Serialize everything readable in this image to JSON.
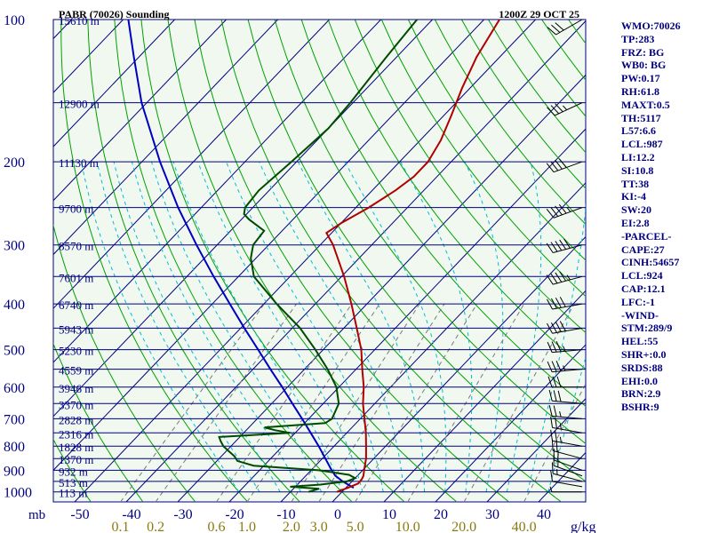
{
  "header": {
    "station_title": "PABR (70026) Sounding",
    "time_title": "1200Z 29 OCT 25"
  },
  "stats": [
    "WMO:70026",
    "TP:283",
    "FRZ: BG",
    "WB0: BG",
    "PW:0.17",
    "RH:61.8",
    "MAXT:0.5",
    "TH:5117",
    "L57:6.6",
    "LCL:987",
    "LI:12.2",
    "SI:10.8",
    "TT:38",
    "KI:-4",
    "SW:20",
    "EI:2.8",
    "-PARCEL-",
    "CAPE:27",
    "CINH:54657",
    "LCL:924",
    "CAP:12.1",
    "LFC:-1",
    "-WIND-",
    "STM:289/9",
    "HEL:55",
    "SHR+:0.0",
    "SRDS:88",
    "EHI:0.0",
    "BRN:2.9",
    "BSHR:9"
  ],
  "colors": {
    "background": "#f0f8f0",
    "isobar": "#000080",
    "isotherm": "#000080",
    "dry_adiabat": "#00a000",
    "moist_adiabat": "#00bcd4",
    "mixing_ratio": "#7a7a7a",
    "temperature": "#b00000",
    "dewpoint": "#004a00",
    "parcel": "#0000c0",
    "wind": "#000000",
    "pressure_label": "#000080",
    "height_label": "#000080",
    "temp_label": "#000080",
    "mixing_label": "#8a7a10"
  },
  "chart_data": {
    "type": "skew-t",
    "pressure_axis_unit": "mb",
    "mixing_ratio_unit": "g/kg",
    "pressure_levels": [
      100,
      200,
      300,
      400,
      500,
      600,
      700,
      800,
      900,
      1000
    ],
    "temperature_ticks": [
      -50,
      -40,
      -30,
      -20,
      -10,
      0,
      10,
      20,
      30,
      40
    ],
    "mixing_ratio_ticks": [
      "0.1",
      "0.2",
      "0.6",
      "1.0",
      "2.0",
      "3.0",
      "5.0",
      "10.0",
      "20.0",
      "40.0"
    ],
    "mixing_ratio_values": [
      0.1,
      0.2,
      0.6,
      1.0,
      2.0,
      3.0,
      5.0,
      10.0,
      20.0,
      40.0
    ],
    "height_labels": [
      {
        "p": 100,
        "label": "15610 m"
      },
      {
        "p": 150,
        "label": "12900 m"
      },
      {
        "p": 200,
        "label": "11130 m"
      },
      {
        "p": 250,
        "label": "9700 m"
      },
      {
        "p": 300,
        "label": "8570 m"
      },
      {
        "p": 350,
        "label": "7601 m"
      },
      {
        "p": 400,
        "label": "6740 m"
      },
      {
        "p": 450,
        "label": "5943 m"
      },
      {
        "p": 500,
        "label": "5230 m"
      },
      {
        "p": 550,
        "label": "4559 m"
      },
      {
        "p": 600,
        "label": "3946 m"
      },
      {
        "p": 650,
        "label": "3370 m"
      },
      {
        "p": 700,
        "label": "2828 m"
      },
      {
        "p": 750,
        "label": "2316 m"
      },
      {
        "p": 800,
        "label": "1828 m"
      },
      {
        "p": 850,
        "label": "1370 m"
      },
      {
        "p": 900,
        "label": "932 m"
      },
      {
        "p": 950,
        "label": "513 m"
      },
      {
        "p": 1000,
        "label": "113 m"
      }
    ],
    "temperature_profile": [
      [
        1000,
        -1.0
      ],
      [
        980,
        0.4
      ],
      [
        960,
        1.6
      ],
      [
        940,
        1.5
      ],
      [
        925,
        1.2
      ],
      [
        900,
        0.3
      ],
      [
        850,
        -1.5
      ],
      [
        800,
        -3.8
      ],
      [
        750,
        -6.3
      ],
      [
        700,
        -9.2
      ],
      [
        650,
        -12.3
      ],
      [
        600,
        -15.2
      ],
      [
        550,
        -18.8
      ],
      [
        500,
        -22.6
      ],
      [
        450,
        -27.5
      ],
      [
        400,
        -33.0
      ],
      [
        350,
        -39.5
      ],
      [
        300,
        -47.5
      ],
      [
        283,
        -51.0
      ],
      [
        270,
        -50.0
      ],
      [
        250,
        -47.5
      ],
      [
        230,
        -45.5
      ],
      [
        215,
        -44.5
      ],
      [
        200,
        -44.5
      ],
      [
        180,
        -46.0
      ],
      [
        160,
        -48.5
      ],
      [
        140,
        -51.5
      ],
      [
        120,
        -54.5
      ],
      [
        100,
        -57.0
      ]
    ],
    "dewpoint_profile": [
      [
        1000,
        -6.5
      ],
      [
        985,
        -5.0
      ],
      [
        975,
        -11.0
      ],
      [
        965,
        -5.5
      ],
      [
        950,
        -1.0
      ],
      [
        935,
        0.0
      ],
      [
        920,
        -1.8
      ],
      [
        900,
        -8.5
      ],
      [
        880,
        -22.0
      ],
      [
        860,
        -26.0
      ],
      [
        840,
        -27.5
      ],
      [
        820,
        -29.5
      ],
      [
        800,
        -31.5
      ],
      [
        780,
        -33.0
      ],
      [
        765,
        -34.0
      ],
      [
        750,
        -21.0
      ],
      [
        740,
        -24.5
      ],
      [
        730,
        -27.0
      ],
      [
        715,
        -16.0
      ],
      [
        700,
        -15.5
      ],
      [
        650,
        -17.0
      ],
      [
        600,
        -20.5
      ],
      [
        550,
        -25.5
      ],
      [
        500,
        -31.5
      ],
      [
        450,
        -38.5
      ],
      [
        400,
        -47.5
      ],
      [
        350,
        -57.0
      ],
      [
        320,
        -61.0
      ],
      [
        300,
        -63.0
      ],
      [
        280,
        -63.5
      ],
      [
        265,
        -68.5
      ],
      [
        258,
        -70.5
      ],
      [
        250,
        -71.5
      ],
      [
        230,
        -72.0
      ],
      [
        200,
        -71.0
      ],
      [
        170,
        -70.0
      ],
      [
        150,
        -70.5
      ],
      [
        120,
        -72.0
      ],
      [
        100,
        -73.0
      ]
    ],
    "parcel_profile": [
      [
        980,
        1.5
      ],
      [
        950,
        -1.8
      ],
      [
        924,
        -4.3
      ],
      [
        900,
        -6.0
      ],
      [
        850,
        -9.4
      ],
      [
        800,
        -13.0
      ],
      [
        750,
        -17.0
      ],
      [
        700,
        -21.3
      ],
      [
        650,
        -26.0
      ],
      [
        600,
        -31.0
      ],
      [
        550,
        -36.6
      ],
      [
        500,
        -42.6
      ],
      [
        450,
        -49.3
      ],
      [
        400,
        -56.6
      ],
      [
        350,
        -64.8
      ],
      [
        300,
        -74.0
      ],
      [
        250,
        -84.5
      ],
      [
        200,
        -96.5
      ],
      [
        150,
        -111.0
      ],
      [
        120,
        -121.0
      ],
      [
        100,
        -129.0
      ]
    ],
    "wind_barbs": [
      {
        "p": 1000,
        "dir": 270,
        "spd": 5
      },
      {
        "p": 975,
        "dir": 280,
        "spd": 10
      },
      {
        "p": 950,
        "dir": 285,
        "spd": 15
      },
      {
        "p": 925,
        "dir": 290,
        "spd": 15
      },
      {
        "p": 900,
        "dir": 290,
        "spd": 20
      },
      {
        "p": 850,
        "dir": 285,
        "spd": 20
      },
      {
        "p": 800,
        "dir": 280,
        "spd": 25
      },
      {
        "p": 750,
        "dir": 280,
        "spd": 25
      },
      {
        "p": 700,
        "dir": 275,
        "spd": 25
      },
      {
        "p": 650,
        "dir": 275,
        "spd": 30
      },
      {
        "p": 600,
        "dir": 270,
        "spd": 30
      },
      {
        "p": 550,
        "dir": 265,
        "spd": 35
      },
      {
        "p": 500,
        "dir": 265,
        "spd": 35
      },
      {
        "p": 450,
        "dir": 260,
        "spd": 40
      },
      {
        "p": 400,
        "dir": 260,
        "spd": 40
      },
      {
        "p": 350,
        "dir": 255,
        "spd": 45
      },
      {
        "p": 300,
        "dir": 255,
        "spd": 50
      },
      {
        "p": 250,
        "dir": 250,
        "spd": 45
      },
      {
        "p": 200,
        "dir": 250,
        "spd": 40
      },
      {
        "p": 150,
        "dir": 245,
        "spd": 35
      },
      {
        "p": 100,
        "dir": 240,
        "spd": 30
      }
    ]
  }
}
